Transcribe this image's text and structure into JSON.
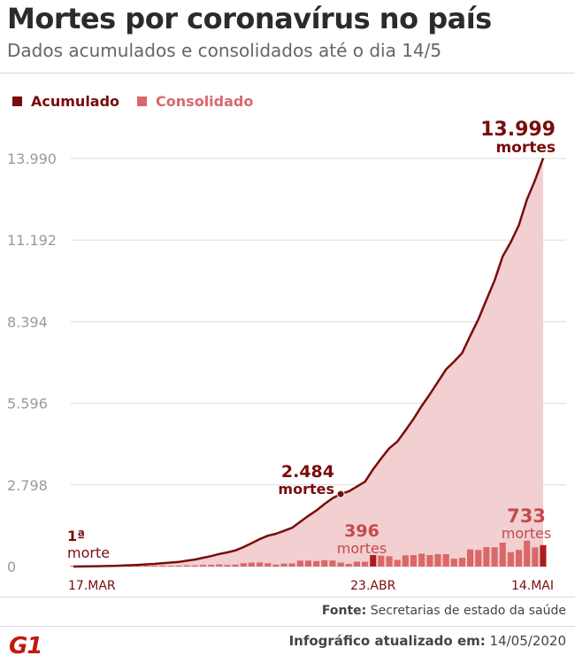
{
  "header": {
    "title": "Mortes por coronavírus no país",
    "subtitle": "Dados acumulados e consolidados até o dia 14/5"
  },
  "legend": [
    {
      "label": "Acumulado",
      "color": "#7a0c0c",
      "text_color": "#7a0c0c"
    },
    {
      "label": "Consolidado",
      "color": "#d9686b",
      "text_color": "#d9686b"
    }
  ],
  "footer": {
    "source_label": "Fonte:",
    "source_text": "Secretarias de estado da saúde",
    "logo": "G1",
    "updated_label": "Infográfico atualizado em:",
    "updated_date": "14/05/2020"
  },
  "chart_data": {
    "type": "area",
    "y_ticks": [
      "0",
      "2.798",
      "5.596",
      "8.394",
      "11.192",
      "13.990"
    ],
    "y_tick_values": [
      0,
      2798,
      5596,
      8394,
      11192,
      13990
    ],
    "ylim": [
      0,
      13990
    ],
    "x_tick_labels": [
      "17.MAR",
      "23.ABR",
      "14.MAI"
    ],
    "x_tick_days": [
      0,
      37,
      58
    ],
    "series": [
      {
        "name": "Acumulado",
        "color": "#7a0c0c",
        "values": [
          1,
          3,
          6,
          11,
          18,
          25,
          34,
          46,
          57,
          77,
          92,
          114,
          136,
          159,
          201,
          240,
          299,
          359,
          431,
          486,
          553,
          667,
          800,
          941,
          1056,
          1124,
          1223,
          1328,
          1532,
          1736,
          1924,
          2141,
          2347,
          2484,
          2575,
          2741,
          2906,
          3331,
          3704,
          4057,
          4286,
          4671,
          5063,
          5505,
          5901,
          6329,
          6754,
          7025,
          7321,
          7911,
          8478,
          9146,
          9807,
          10627,
          11123,
          11698,
          12584,
          13240,
          13999
        ]
      },
      {
        "name": "Consolidado",
        "color": "#d9686b",
        "values": [
          1,
          2,
          3,
          5,
          7,
          7,
          9,
          12,
          11,
          20,
          15,
          22,
          22,
          23,
          42,
          39,
          59,
          60,
          72,
          55,
          67,
          114,
          133,
          141,
          115,
          68,
          99,
          105,
          204,
          204,
          188,
          217,
          206,
          137,
          91,
          166,
          165,
          396,
          373,
          353,
          229,
          385,
          392,
          442,
          396,
          428,
          425,
          271,
          296,
          590,
          567,
          668,
          661,
          820,
          496,
          575,
          886,
          656,
          733
        ]
      }
    ],
    "annotations": [
      {
        "text": "1ª",
        "text2": "morte",
        "day": 0
      },
      {
        "text": "2.484",
        "text2": "mortes",
        "day": 33
      },
      {
        "text": "396",
        "text2": "mortes",
        "day": 37
      },
      {
        "text": "13.999",
        "text2": "mortes",
        "day": 58
      },
      {
        "text": "733",
        "text2": "mortes",
        "day": 58
      }
    ],
    "grid": true
  }
}
